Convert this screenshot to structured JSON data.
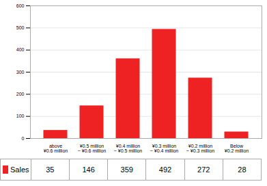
{
  "chart_data": {
    "type": "bar",
    "categories": [
      "above\n¥0.6 million",
      "¥0.5 million\n~ ¥0.6 million",
      "¥0.4 million\n~ ¥0.5 million",
      "¥0.3 million\n~ ¥0.4 million",
      "¥0.2 million\n~ ¥0.3 million",
      "Below\n¥0.2 million"
    ],
    "series": [
      {
        "name": "Sales",
        "color": "#ee2222",
        "values": [
          35,
          146,
          359,
          492,
          272,
          28
        ]
      }
    ],
    "ylim": [
      0,
      600
    ],
    "yticks": [
      0,
      100,
      200,
      300,
      400,
      500,
      600
    ],
    "grid": true,
    "data_labels": true
  }
}
